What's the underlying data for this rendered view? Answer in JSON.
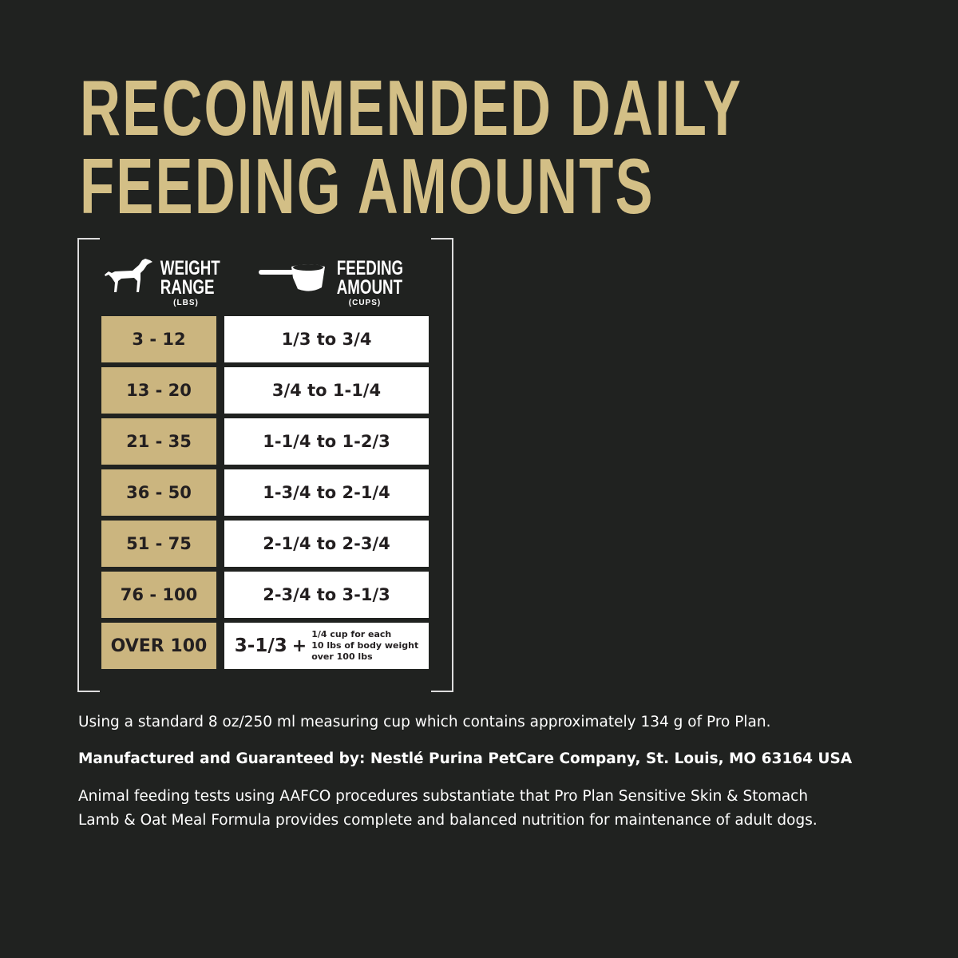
{
  "title": {
    "line1": "RECOMMENDED DAILY",
    "line2": "FEEDING AMOUNTS"
  },
  "colors": {
    "background": "#202220",
    "gold": "#cbb57f",
    "title": "#d3bf86"
  },
  "table": {
    "weight_header": {
      "line1": "WEIGHT",
      "line2": "RANGE",
      "unit": "(LBS)",
      "icon": "dog-icon"
    },
    "feeding_header": {
      "line1": "FEEDING",
      "line2": "AMOUNT",
      "unit": "(CUPS)",
      "icon": "measuring-cup-icon"
    },
    "rows": [
      {
        "weight": "3 - 12",
        "amount": "1/3 to 3/4"
      },
      {
        "weight": "13 - 20",
        "amount": "3/4 to 1-1/4"
      },
      {
        "weight": "21 - 35",
        "amount": "1-1/4 to 1-2/3"
      },
      {
        "weight": "36 - 50",
        "amount": "1-3/4 to 2-1/4"
      },
      {
        "weight": "51 - 75",
        "amount": "2-1/4 to 2-3/4"
      },
      {
        "weight": "76 - 100",
        "amount": "2-3/4 to 3-1/3"
      }
    ],
    "last_row": {
      "weight": "OVER 100",
      "amount": "3-1/3",
      "plus": "+",
      "note1": "1/4 cup for each",
      "note2": "10 lbs of body weight",
      "note3": "over 100 lbs"
    }
  },
  "footer": {
    "cup_note": "Using a standard 8 oz/250 ml measuring cup which contains approximately 134 g of Pro Plan.",
    "manufacturer": "Manufactured and Guaranteed by: Nestlé Purina PetCare Company, St. Louis, MO 63164 USA",
    "aafco_line1": "Animal feeding tests using AAFCO procedures substantiate that Pro Plan Sensitive Skin & Stomach",
    "aafco_line2": "Lamb & Oat Meal Formula provides complete and balanced nutrition for maintenance of adult dogs."
  }
}
